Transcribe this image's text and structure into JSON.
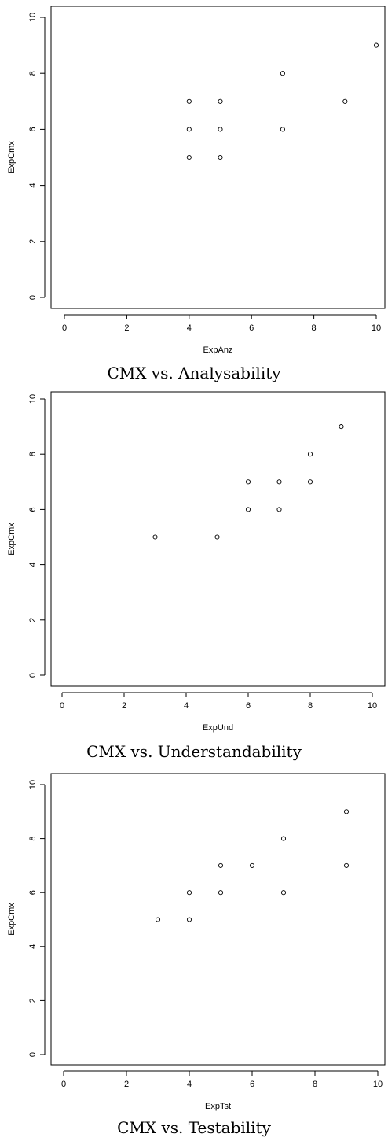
{
  "chart_data": [
    {
      "type": "scatter",
      "caption": "CMX vs. Analysability",
      "xlabel": "ExpAnz",
      "ylabel": "ExpCmx",
      "xlim": [
        0,
        10
      ],
      "ylim": [
        0,
        10
      ],
      "xticks": [
        "0",
        "2",
        "4",
        "6",
        "8",
        "10"
      ],
      "yticks": [
        "0",
        "2",
        "4",
        "6",
        "8",
        "10"
      ],
      "points": [
        {
          "x": 4,
          "y": 7
        },
        {
          "x": 4,
          "y": 6
        },
        {
          "x": 4,
          "y": 5
        },
        {
          "x": 5,
          "y": 7
        },
        {
          "x": 5,
          "y": 6
        },
        {
          "x": 5,
          "y": 5
        },
        {
          "x": 7,
          "y": 8
        },
        {
          "x": 7,
          "y": 6
        },
        {
          "x": 9,
          "y": 7
        },
        {
          "x": 10,
          "y": 9
        }
      ]
    },
    {
      "type": "scatter",
      "caption": "CMX vs. Understandability",
      "xlabel": "ExpUnd",
      "ylabel": "ExpCmx",
      "xlim": [
        0,
        10
      ],
      "ylim": [
        0,
        10
      ],
      "xticks": [
        "0",
        "2",
        "4",
        "6",
        "8",
        "10"
      ],
      "yticks": [
        "0",
        "2",
        "4",
        "6",
        "8",
        "10"
      ],
      "points": [
        {
          "x": 3,
          "y": 5
        },
        {
          "x": 5,
          "y": 5
        },
        {
          "x": 6,
          "y": 7
        },
        {
          "x": 6,
          "y": 6
        },
        {
          "x": 7,
          "y": 7
        },
        {
          "x": 7,
          "y": 6
        },
        {
          "x": 8,
          "y": 8
        },
        {
          "x": 8,
          "y": 7
        },
        {
          "x": 9,
          "y": 9
        }
      ]
    },
    {
      "type": "scatter",
      "caption": "CMX vs. Testability",
      "xlabel": "ExpTst",
      "ylabel": "ExpCmx",
      "xlim": [
        0,
        10
      ],
      "ylim": [
        0,
        10
      ],
      "xticks": [
        "0",
        "2",
        "4",
        "6",
        "8",
        "10"
      ],
      "yticks": [
        "0",
        "2",
        "4",
        "6",
        "8",
        "10"
      ],
      "points": [
        {
          "x": 3,
          "y": 5
        },
        {
          "x": 4,
          "y": 6
        },
        {
          "x": 4,
          "y": 5
        },
        {
          "x": 5,
          "y": 7
        },
        {
          "x": 5,
          "y": 6
        },
        {
          "x": 6,
          "y": 7
        },
        {
          "x": 7,
          "y": 8
        },
        {
          "x": 7,
          "y": 6
        },
        {
          "x": 9,
          "y": 9
        },
        {
          "x": 9,
          "y": 7
        }
      ]
    }
  ]
}
